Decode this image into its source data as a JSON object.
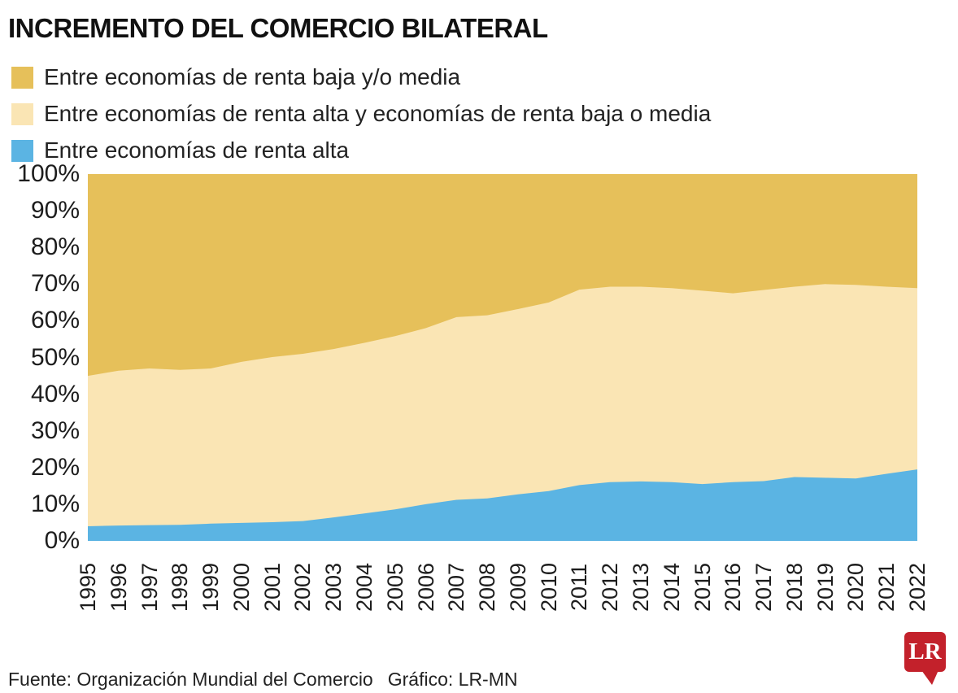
{
  "title": "INCREMENTO DEL COMERCIO BILATERAL",
  "colors": {
    "gold": "#E6C05A",
    "cream": "#FAE5B4",
    "blue": "#5BB4E3",
    "logo_red": "#C3212B",
    "text": "#1D1D1D"
  },
  "legend": [
    {
      "label": "Entre economías de renta baja y/o media",
      "color": "#E6C05A"
    },
    {
      "label": "Entre economías de renta alta y economías de renta baja o media",
      "color": "#FAE5B4"
    },
    {
      "label": "Entre economías de renta alta",
      "color": "#5BB4E3"
    }
  ],
  "footer": {
    "source": "Fuente: Organización Mundial del Comercio",
    "credit": "Gráfico: LR-MN"
  },
  "logo": {
    "text": "LR"
  },
  "chart_data": {
    "type": "area",
    "stacked": true,
    "title": "INCREMENTO DEL COMERCIO BILATERAL",
    "xlabel": "",
    "ylabel": "",
    "ylim": [
      0,
      100
    ],
    "grid": false,
    "legend_position": "top",
    "y_ticks": [
      "100%",
      "90%",
      "80%",
      "70%",
      "60%",
      "50%",
      "40%",
      "30%",
      "20%",
      "10%",
      "0%"
    ],
    "x": [
      1995,
      1996,
      1997,
      1998,
      1999,
      2000,
      2001,
      2002,
      2003,
      2004,
      2005,
      2006,
      2007,
      2008,
      2009,
      2010,
      2011,
      2012,
      2013,
      2014,
      2015,
      2016,
      2017,
      2018,
      2019,
      2020,
      2021,
      2022
    ],
    "series": [
      {
        "name": "Entre economías de renta alta",
        "color": "#5BB4E3",
        "values": [
          4.0,
          4.2,
          4.3,
          4.4,
          4.7,
          4.9,
          5.1,
          5.4,
          6.4,
          7.5,
          8.6,
          10.0,
          11.2,
          11.6,
          12.7,
          13.6,
          15.2,
          16.0,
          16.2,
          16.0,
          15.5,
          16.0,
          16.3,
          17.4,
          17.2,
          17.0,
          18.3,
          19.5
        ]
      },
      {
        "name": "Entre economías de renta alta y economías de renta baja o media",
        "color": "#FAE5B4",
        "values": [
          41.0,
          42.2,
          42.7,
          42.2,
          42.3,
          43.9,
          45.0,
          45.6,
          45.9,
          46.5,
          47.2,
          48.0,
          49.8,
          49.9,
          50.5,
          51.4,
          53.3,
          53.3,
          53.1,
          52.9,
          52.7,
          51.5,
          52.1,
          51.9,
          52.8,
          52.8,
          51.0,
          49.4
        ]
      },
      {
        "name": "Entre economías de renta baja y/o media",
        "color": "#E6C05A",
        "values": [
          55.0,
          53.6,
          53.0,
          53.4,
          53.0,
          51.2,
          49.9,
          49.0,
          47.7,
          46.0,
          44.2,
          42.0,
          39.0,
          38.5,
          36.8,
          35.0,
          31.5,
          30.7,
          30.7,
          31.1,
          31.8,
          32.5,
          31.6,
          30.7,
          30.0,
          30.2,
          30.7,
          31.1
        ]
      }
    ]
  }
}
